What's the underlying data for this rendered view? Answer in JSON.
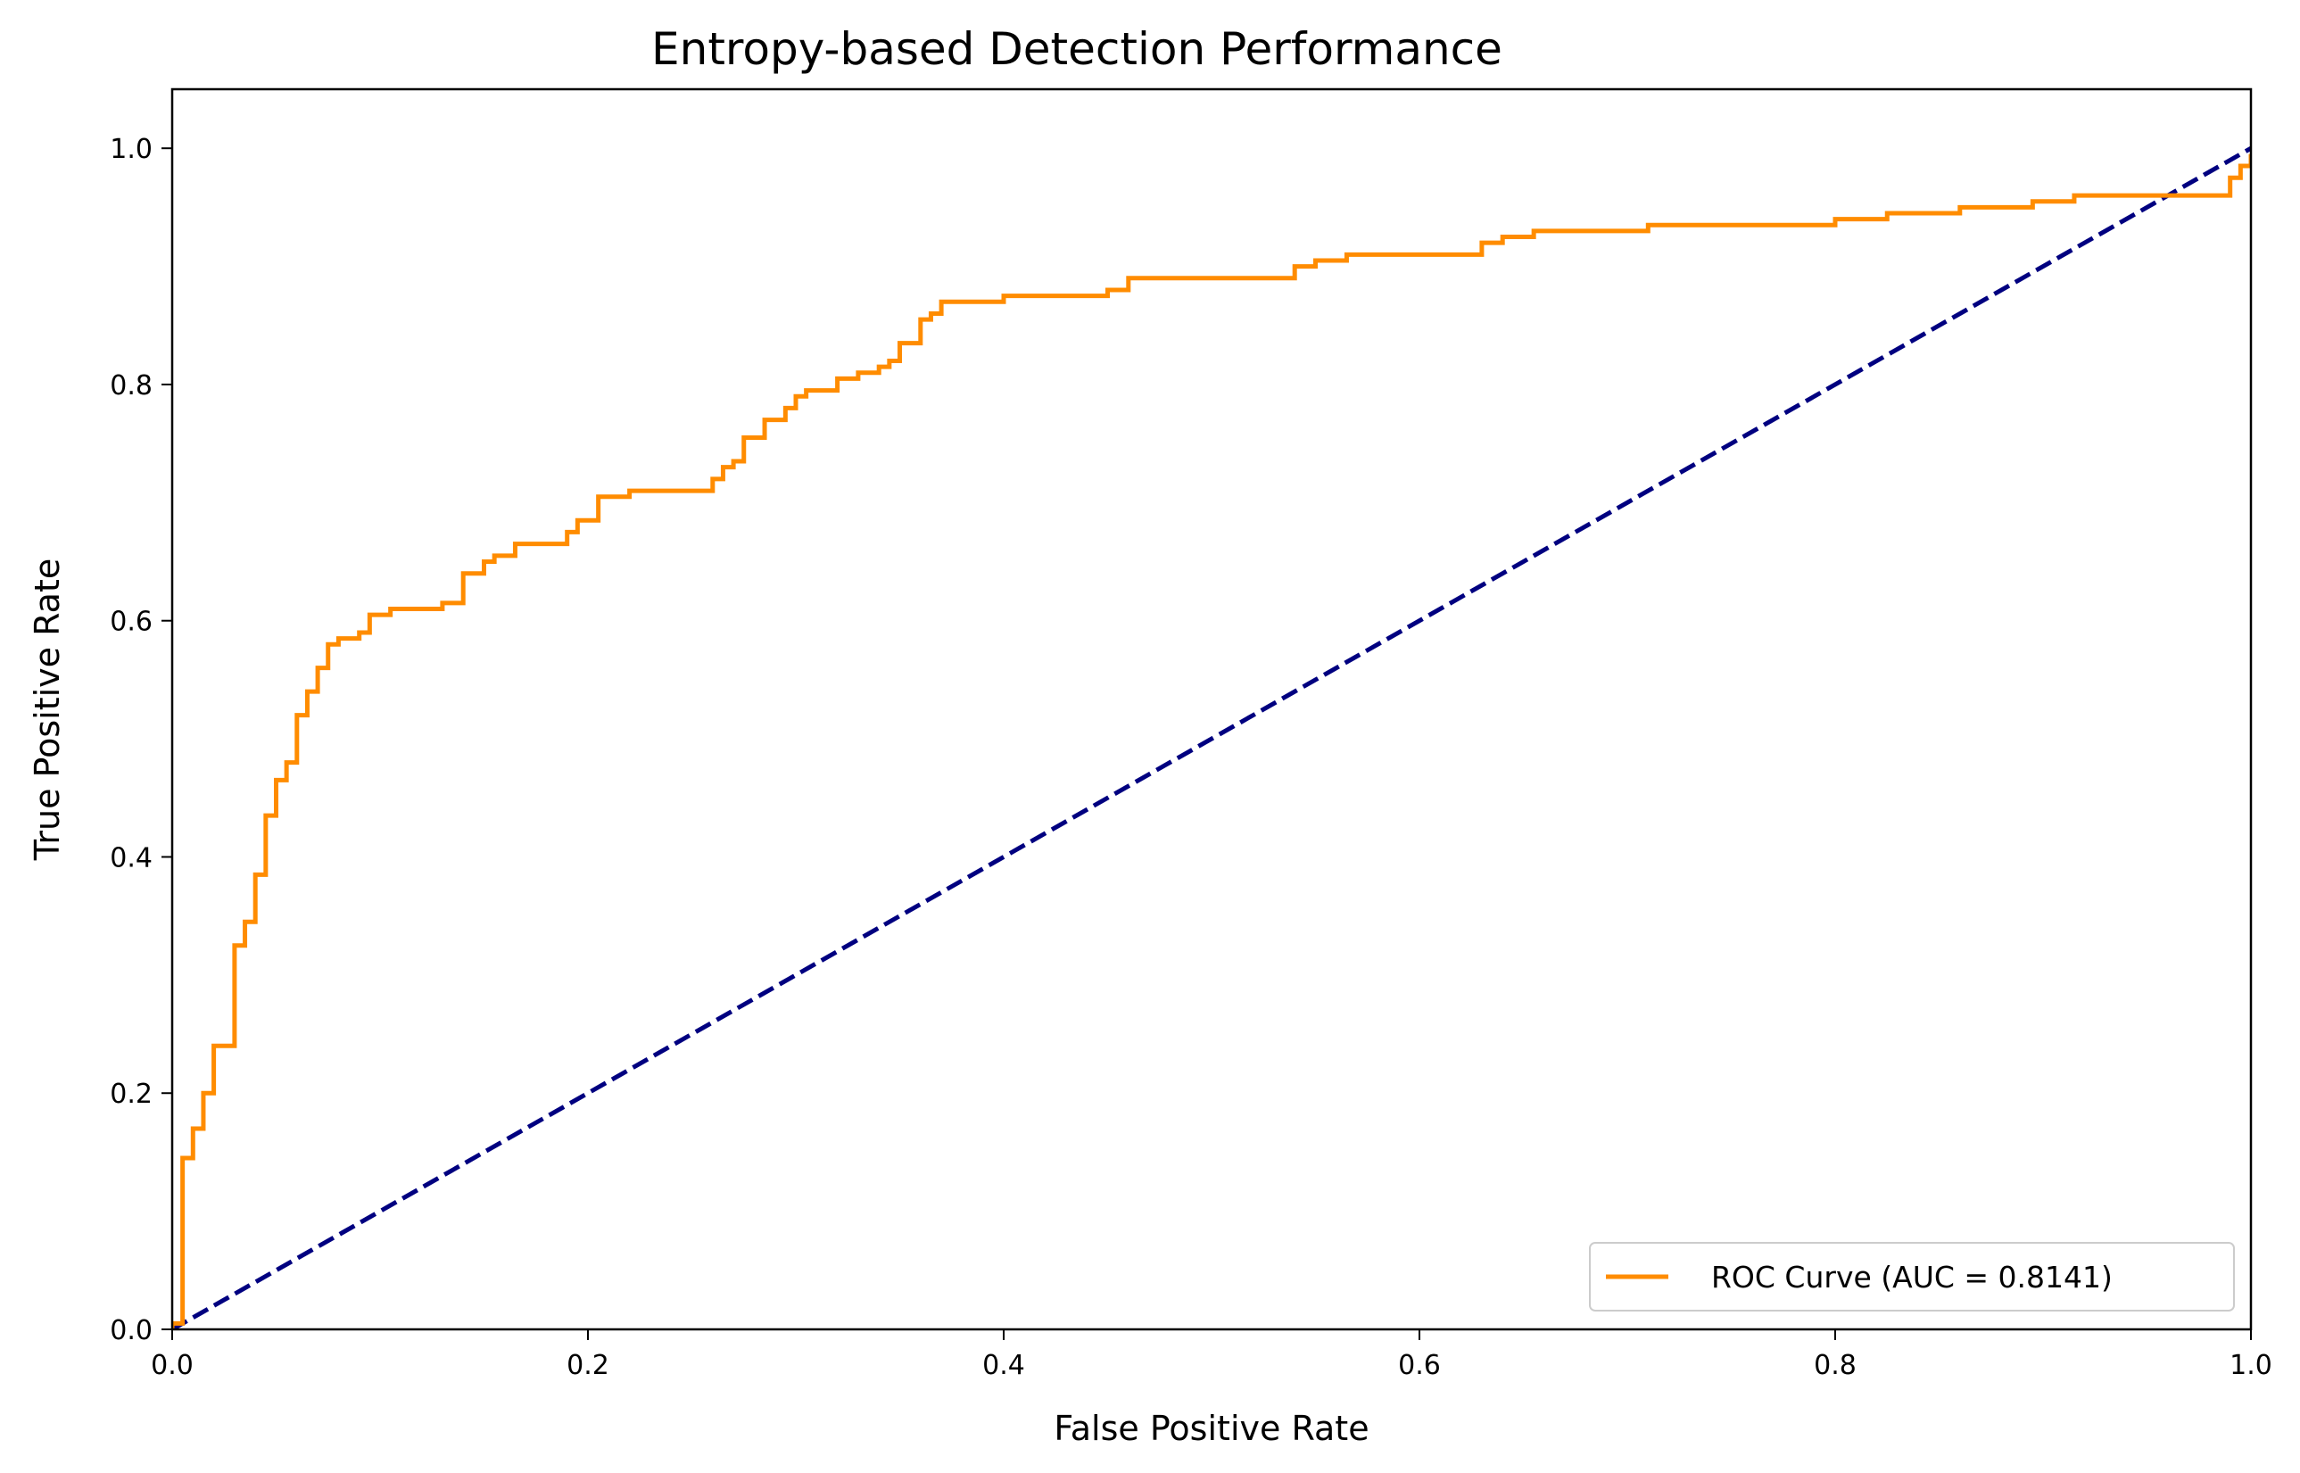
{
  "chart_data": {
    "type": "line",
    "title": "Entropy-based Detection Performance",
    "xlabel": "False Positive Rate",
    "ylabel": "True Positive Rate",
    "xlim": [
      0.0,
      1.0
    ],
    "ylim": [
      0.0,
      1.05
    ],
    "xticks": [
      "0.0",
      "0.2",
      "0.4",
      "0.6",
      "0.8",
      "1.0"
    ],
    "yticks": [
      "0.0",
      "0.2",
      "0.4",
      "0.6",
      "0.8",
      "1.0"
    ],
    "grid": false,
    "legend_position": "lower-right",
    "series": [
      {
        "name": "ROC Curve (AUC = 0.8141)",
        "color": "#ff8c00",
        "style": "solid",
        "x": [
          0.0,
          0.0,
          0.005,
          0.005,
          0.01,
          0.01,
          0.015,
          0.015,
          0.02,
          0.02,
          0.03,
          0.03,
          0.035,
          0.035,
          0.04,
          0.04,
          0.045,
          0.045,
          0.05,
          0.05,
          0.055,
          0.055,
          0.06,
          0.06,
          0.065,
          0.065,
          0.07,
          0.07,
          0.075,
          0.075,
          0.08,
          0.08,
          0.085,
          0.085,
          0.09,
          0.09,
          0.095,
          0.095,
          0.1,
          0.1,
          0.105,
          0.105,
          0.13,
          0.13,
          0.14,
          0.14,
          0.15,
          0.15,
          0.155,
          0.155,
          0.165,
          0.165,
          0.19,
          0.19,
          0.195,
          0.195,
          0.205,
          0.205,
          0.22,
          0.22,
          0.26,
          0.26,
          0.265,
          0.265,
          0.27,
          0.27,
          0.275,
          0.275,
          0.285,
          0.285,
          0.295,
          0.295,
          0.3,
          0.3,
          0.305,
          0.305,
          0.32,
          0.32,
          0.33,
          0.33,
          0.34,
          0.34,
          0.345,
          0.345,
          0.35,
          0.35,
          0.36,
          0.36,
          0.365,
          0.365,
          0.37,
          0.37,
          0.4,
          0.4,
          0.45,
          0.45,
          0.46,
          0.46,
          0.54,
          0.54,
          0.55,
          0.55,
          0.565,
          0.565,
          0.63,
          0.63,
          0.64,
          0.64,
          0.655,
          0.655,
          0.71,
          0.71,
          0.8,
          0.8,
          0.825,
          0.825,
          0.86,
          0.86,
          0.895,
          0.895,
          0.915,
          0.915,
          0.99,
          0.99,
          0.995,
          0.995,
          1.0,
          1.0
        ],
        "y": [
          0.0,
          0.005,
          0.005,
          0.145,
          0.145,
          0.17,
          0.17,
          0.2,
          0.2,
          0.24,
          0.24,
          0.325,
          0.325,
          0.345,
          0.345,
          0.385,
          0.385,
          0.435,
          0.435,
          0.465,
          0.465,
          0.48,
          0.48,
          0.52,
          0.52,
          0.54,
          0.54,
          0.56,
          0.56,
          0.58,
          0.58,
          0.585,
          0.585,
          0.585,
          0.585,
          0.59,
          0.59,
          0.605,
          0.605,
          0.605,
          0.605,
          0.61,
          0.61,
          0.615,
          0.615,
          0.64,
          0.64,
          0.65,
          0.65,
          0.655,
          0.655,
          0.665,
          0.665,
          0.675,
          0.675,
          0.685,
          0.685,
          0.705,
          0.705,
          0.71,
          0.71,
          0.72,
          0.72,
          0.73,
          0.73,
          0.735,
          0.735,
          0.755,
          0.755,
          0.77,
          0.77,
          0.78,
          0.78,
          0.79,
          0.79,
          0.795,
          0.795,
          0.805,
          0.805,
          0.81,
          0.81,
          0.815,
          0.815,
          0.82,
          0.82,
          0.835,
          0.835,
          0.855,
          0.855,
          0.86,
          0.86,
          0.87,
          0.87,
          0.875,
          0.875,
          0.88,
          0.88,
          0.89,
          0.89,
          0.9,
          0.9,
          0.905,
          0.905,
          0.91,
          0.91,
          0.92,
          0.92,
          0.925,
          0.925,
          0.93,
          0.93,
          0.935,
          0.935,
          0.94,
          0.94,
          0.945,
          0.945,
          0.95,
          0.95,
          0.955,
          0.955,
          0.96,
          0.96,
          0.975,
          0.975,
          0.985,
          0.985,
          0.995
        ]
      },
      {
        "name": "",
        "color": "#000080",
        "style": "dashed",
        "x": [
          0.0,
          1.0
        ],
        "y": [
          0.0,
          1.0
        ]
      }
    ]
  }
}
